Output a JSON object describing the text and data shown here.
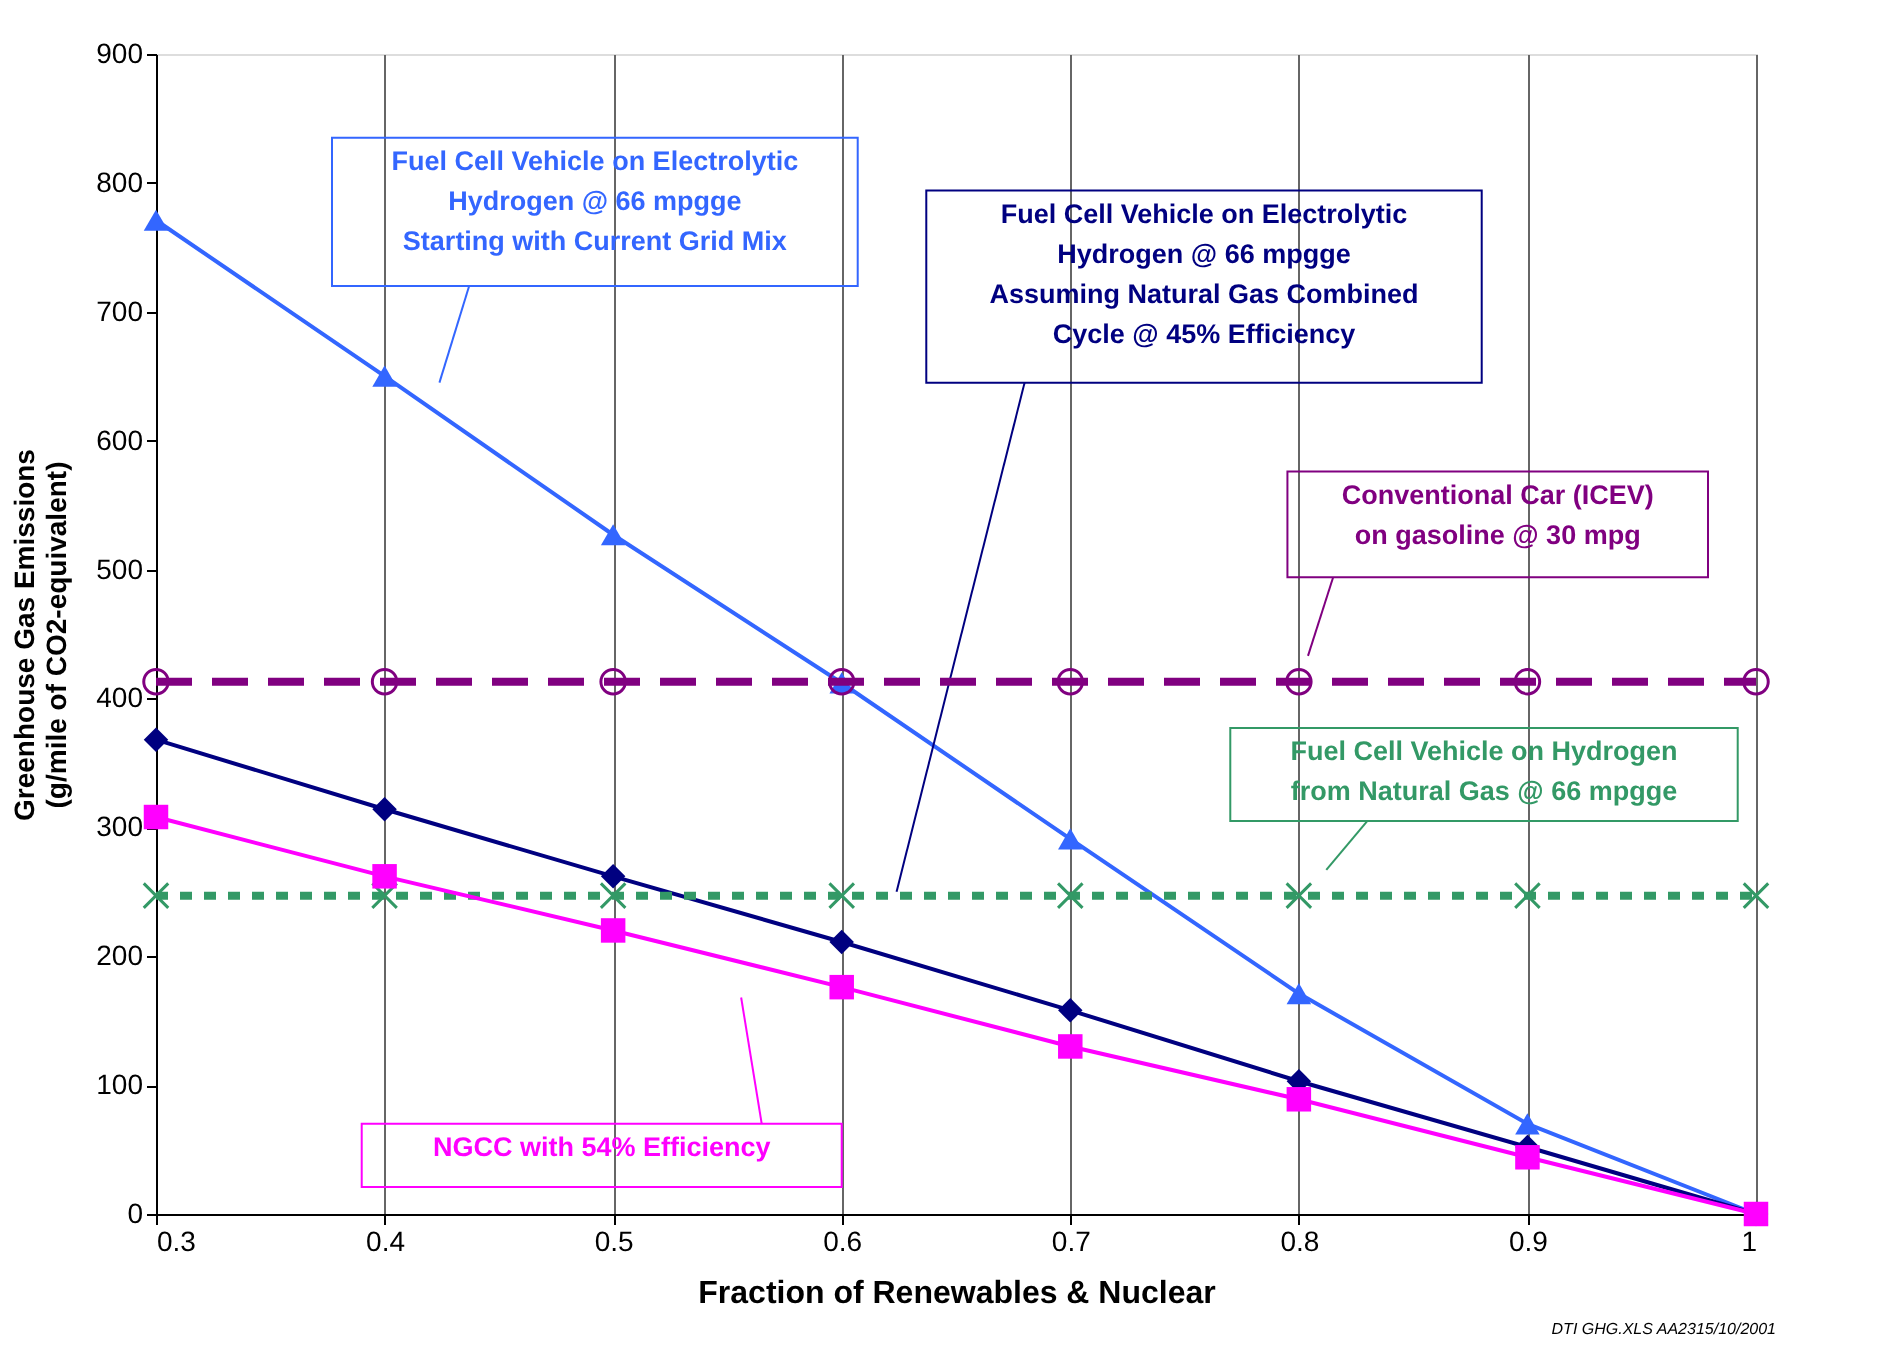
{
  "chart_data": {
    "type": "line",
    "xlabel": "Fraction of Renewables & Nuclear",
    "ylabel": "Greenhouse Gas Emissions\n(g/mile of CO2-equivalent)",
    "x": [
      0.3,
      0.4,
      0.5,
      0.6,
      0.7,
      0.8,
      0.9,
      1
    ],
    "xlim": [
      0.3,
      1
    ],
    "xticks": [
      0.3,
      0.4,
      0.5,
      0.6,
      0.7,
      0.8,
      0.9,
      1
    ],
    "ylim": [
      0,
      900
    ],
    "yticks": [
      0,
      100,
      200,
      300,
      400,
      500,
      600,
      700,
      800,
      900
    ],
    "grid": "x",
    "legend": false,
    "series": [
      {
        "name": "Fuel Cell Vehicle on Electrolytic\nHydrogen @ 66 mpgge\nStarting with Current Grid Mix",
        "color": "#3366ff",
        "marker": "triangle",
        "line_style": "solid",
        "values": [
          771,
          650,
          527,
          412,
          291,
          171,
          70,
          0
        ]
      },
      {
        "name": "Fuel Cell Vehicle on Electrolytic\nHydrogen @ 66 mpgge\nAssuming Natural Gas Combined\nCycle @ 45% Efficiency",
        "color": "#000080",
        "marker": "diamond",
        "line_style": "solid",
        "values": [
          368,
          314,
          262,
          211,
          158,
          103,
          52,
          0
        ]
      },
      {
        "name": "Conventional Car (ICEV)\non gasoline @ 30 mpg",
        "color": "#800080",
        "marker": "circle",
        "line_style": "dashed",
        "values": [
          413,
          413,
          413,
          413,
          413,
          413,
          413,
          413
        ]
      },
      {
        "name": "Fuel Cell Vehicle on Hydrogen\nfrom Natural Gas @ 66 mpgge",
        "color": "#339966",
        "marker": "cross",
        "line_style": "dotted",
        "values": [
          247,
          247,
          247,
          247,
          247,
          247,
          247,
          247
        ]
      },
      {
        "name": "NGCC with 54% Efficiency",
        "color": "#ff00ff",
        "marker": "square",
        "line_style": "solid",
        "values": [
          308,
          262,
          220,
          176,
          130,
          89,
          44,
          0
        ]
      }
    ],
    "annotations": [
      "DTI GHG.XLS AA2315/10/2001"
    ]
  }
}
